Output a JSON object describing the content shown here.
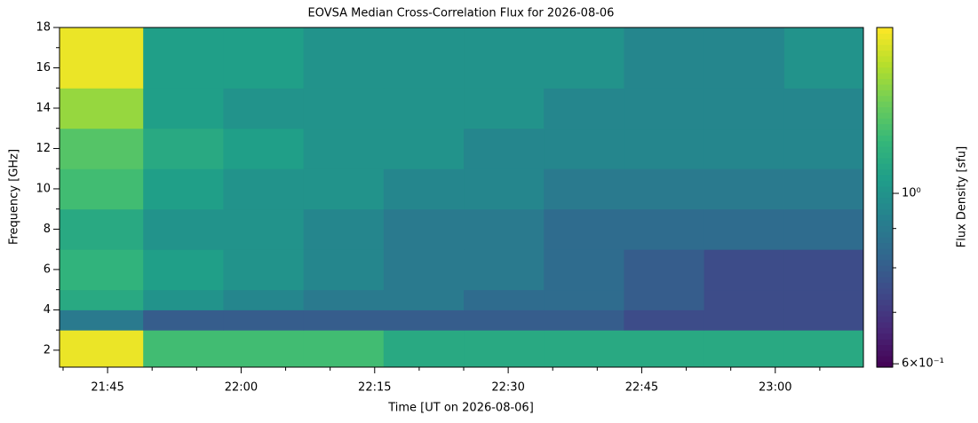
{
  "chart_data": {
    "type": "heatmap",
    "title": "EOVSA Median Cross-Correlation Flux for 2026-08-06",
    "xlabel": "Time [UT on 2026-08-06]",
    "ylabel": "Frequency [GHz]",
    "colorbar_label": "Flux Density [sfu]",
    "colormap": "viridis",
    "color_log": true,
    "x_bins": [
      1299.6,
      1309,
      1318,
      1327,
      1336,
      1345,
      1354,
      1363,
      1372,
      1381,
      1389.9
    ],
    "y_bins": [
      1.16,
      3,
      4,
      5,
      7,
      9,
      11,
      13,
      15,
      18
    ],
    "z": [
      [
        1.6,
        1.2,
        1.2,
        1.2,
        1.1,
        1.1,
        1.1,
        1.1,
        1.1,
        1.1
      ],
      [
        0.9,
        0.8,
        0.8,
        0.8,
        0.8,
        0.8,
        0.8,
        0.75,
        0.75,
        0.75
      ],
      [
        1.1,
        1.0,
        0.95,
        0.9,
        0.9,
        0.85,
        0.85,
        0.8,
        0.75,
        0.75
      ],
      [
        1.15,
        1.05,
        1.0,
        0.95,
        0.9,
        0.9,
        0.85,
        0.8,
        0.75,
        0.75
      ],
      [
        1.1,
        1.0,
        1.0,
        0.95,
        0.9,
        0.9,
        0.85,
        0.85,
        0.85,
        0.85
      ],
      [
        1.2,
        1.05,
        1.0,
        1.0,
        0.95,
        0.95,
        0.9,
        0.9,
        0.9,
        0.9
      ],
      [
        1.25,
        1.1,
        1.05,
        1.0,
        1.0,
        0.95,
        0.95,
        0.95,
        0.95,
        0.95
      ],
      [
        1.4,
        1.05,
        1.0,
        1.0,
        1.0,
        1.0,
        0.95,
        0.95,
        0.95,
        0.95
      ],
      [
        1.6,
        1.05,
        1.05,
        1.0,
        1.0,
        1.0,
        1.0,
        0.95,
        0.95,
        1.0
      ]
    ],
    "xlim": [
      1299.6,
      1389.9
    ],
    "xticks": [
      {
        "value": 1305,
        "label": "21:45"
      },
      {
        "value": 1320,
        "label": "22:00"
      },
      {
        "value": 1335,
        "label": "22:15"
      },
      {
        "value": 1350,
        "label": "22:30"
      },
      {
        "value": 1365,
        "label": "22:45"
      },
      {
        "value": 1380,
        "label": "23:00"
      }
    ],
    "xticks_minor": [
      1300,
      1310,
      1315,
      1325,
      1330,
      1340,
      1345,
      1355,
      1360,
      1370,
      1375,
      1385
    ],
    "ylim": [
      1.16,
      18
    ],
    "yticks": [
      2,
      4,
      6,
      8,
      10,
      12,
      14,
      16,
      18
    ],
    "yticks_minor": [
      3,
      5,
      7,
      9,
      11,
      13,
      15,
      17
    ],
    "clim": [
      0.594,
      1.644
    ],
    "cticks": [
      {
        "value": 0.6,
        "label": "6×10⁻¹"
      },
      {
        "value": 1,
        "label": "10⁰"
      }
    ],
    "cticks_minor": [
      0.7,
      0.8,
      0.9
    ]
  }
}
